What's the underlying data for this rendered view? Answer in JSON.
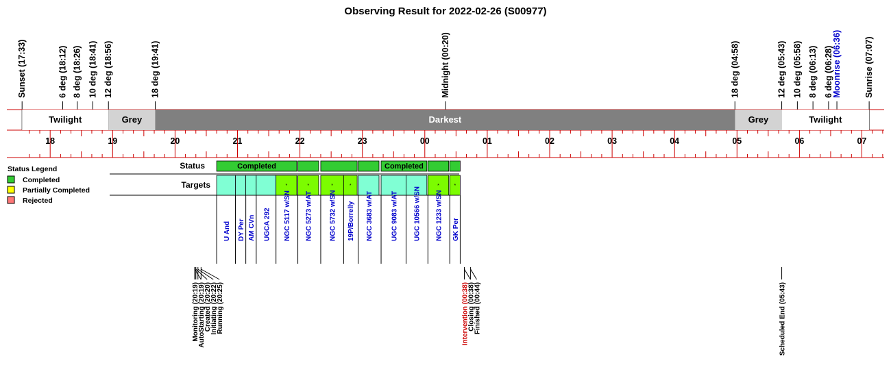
{
  "title": "Observing Result for 2022-02-26 (S00977)",
  "events_top": [
    {
      "label": "Sunset (17:33)",
      "time": "17:33",
      "color": "#000000"
    },
    {
      "label": "6 deg (18:12)",
      "time": "18:12",
      "color": "#000000"
    },
    {
      "label": "8 deg (18:26)",
      "time": "18:26",
      "color": "#000000"
    },
    {
      "label": "10 deg (18:41)",
      "time": "18:41",
      "color": "#000000"
    },
    {
      "label": "12 deg (18:56)",
      "time": "18:56",
      "color": "#000000"
    },
    {
      "label": "18 deg (19:41)",
      "time": "19:41",
      "color": "#000000"
    },
    {
      "label": "Midnight (00:20)",
      "time": "00:20",
      "color": "#000000"
    },
    {
      "label": "18 deg (04:58)",
      "time": "04:58",
      "color": "#000000"
    },
    {
      "label": "12 deg (05:43)",
      "time": "05:43",
      "color": "#000000"
    },
    {
      "label": "10 deg (05:58)",
      "time": "05:58",
      "color": "#000000"
    },
    {
      "label": "8 deg (06:13)",
      "time": "06:13",
      "color": "#000000"
    },
    {
      "label": "6 deg (06:28)",
      "time": "06:28",
      "color": "#000000"
    },
    {
      "label": "Moonrise (06:36)",
      "time": "06:36",
      "color": "#0000cc"
    },
    {
      "label": "Sunrise (07:07)",
      "time": "07:07",
      "color": "#000000"
    }
  ],
  "bands": [
    {
      "label": "Twilight",
      "start": "17:33",
      "end": "18:56",
      "fill": "#ffffff",
      "text_color": "#000000"
    },
    {
      "label": "Grey",
      "start": "18:56",
      "end": "19:41",
      "fill": "#d3d3d3",
      "text_color": "#000000"
    },
    {
      "label": "Darkest",
      "start": "19:41",
      "end": "04:58",
      "fill": "#808080",
      "text_color": "#ffffff"
    },
    {
      "label": "Grey",
      "start": "04:58",
      "end": "05:43",
      "fill": "#d3d3d3",
      "text_color": "#000000"
    },
    {
      "label": "Twilight",
      "start": "05:43",
      "end": "07:07",
      "fill": "#ffffff",
      "text_color": "#000000"
    }
  ],
  "hour_labels": [
    "18",
    "19",
    "20",
    "21",
    "22",
    "23",
    "00",
    "01",
    "02",
    "03",
    "04",
    "05",
    "06",
    "07"
  ],
  "legend": {
    "title": "Status Legend",
    "items": [
      {
        "label": "Completed",
        "color": "#33cc33"
      },
      {
        "label": "Partially Completed",
        "color": "#ffff00"
      },
      {
        "label": "Rejected",
        "color": "#ff7777"
      }
    ]
  },
  "row_labels": {
    "status": "Status",
    "targets": "Targets"
  },
  "status_blocks": [
    {
      "start": "20:40",
      "end": "21:57",
      "label": "Completed",
      "color": "#33cc33"
    },
    {
      "start": "21:58",
      "end": "22:18",
      "label": "",
      "color": "#33cc33"
    },
    {
      "start": "22:20",
      "end": "22:55",
      "label": "",
      "color": "#33cc33"
    },
    {
      "start": "22:56",
      "end": "23:16",
      "label": "",
      "color": "#33cc33"
    },
    {
      "start": "23:18",
      "end": "00:02",
      "label": "Completed",
      "color": "#33cc33"
    },
    {
      "start": "00:03",
      "end": "00:23",
      "label": "",
      "color": "#33cc33"
    },
    {
      "start": "00:24",
      "end": "00:34",
      "label": "",
      "color": "#33cc33"
    }
  ],
  "targets": [
    {
      "name": "U And",
      "start": "20:40",
      "end": "20:58",
      "fill": "#80ffd4",
      "mark": ""
    },
    {
      "name": "DY Per",
      "start": "20:58",
      "end": "21:08",
      "fill": "#80ffd4",
      "mark": ""
    },
    {
      "name": "AM CVn",
      "start": "21:08",
      "end": "21:18",
      "fill": "#80ffd4",
      "mark": ""
    },
    {
      "name": "UGCA 292",
      "start": "21:18",
      "end": "21:37",
      "fill": "#80ffd4",
      "mark": ""
    },
    {
      "name": "NGC 5117 w/SN",
      "start": "21:37",
      "end": "21:57",
      "fill": "#7cfc00",
      "mark": "*"
    },
    {
      "name": "NGC 5273 w/AT",
      "start": "21:58",
      "end": "22:18",
      "fill": "#7cfc00",
      "mark": "*"
    },
    {
      "name": "NGC 5732 w/SN",
      "start": "22:20",
      "end": "22:42",
      "fill": "#7cfc00",
      "mark": "*"
    },
    {
      "name": "19P/Borrelly",
      "start": "22:42",
      "end": "22:55",
      "fill": "#7cfc00",
      "mark": "*"
    },
    {
      "name": "NGC 3683 w/AT",
      "start": "22:56",
      "end": "23:16",
      "fill": "#80ffd4",
      "mark": ""
    },
    {
      "name": "UGC 9083 w/AT",
      "start": "23:18",
      "end": "23:42",
      "fill": "#80ffd4",
      "mark": ""
    },
    {
      "name": "UGC 10566 w/SN",
      "start": "23:42",
      "end": "00:02",
      "fill": "#80ffd4",
      "mark": ""
    },
    {
      "name": "NGC 1233 w/SN",
      "start": "00:03",
      "end": "00:23",
      "fill": "#7cfc00",
      "mark": "*"
    },
    {
      "name": "GK Per",
      "start": "00:24",
      "end": "00:34",
      "fill": "#7cfc00",
      "mark": "*"
    }
  ],
  "events_bottom": [
    {
      "label": "Monitoring (20:19)",
      "time": "20:19",
      "color": "#000000"
    },
    {
      "label": "AutoStarting (20:19)",
      "time": "20:19",
      "color": "#000000"
    },
    {
      "label": "Created (20:20)",
      "time": "20:20",
      "color": "#000000"
    },
    {
      "label": "Initiating (20:22)",
      "time": "20:22",
      "color": "#000000"
    },
    {
      "label": "Running (20:25)",
      "time": "20:25",
      "color": "#000000"
    },
    {
      "label": "Intervention (00:38)",
      "time": "00:38",
      "color": "#cc0000"
    },
    {
      "label": "Closing (00:38)",
      "time": "00:38",
      "color": "#000000"
    },
    {
      "label": "Finished (00:44)",
      "time": "00:44",
      "color": "#000000"
    },
    {
      "label": "Scheduled End (05:43)",
      "time": "05:43",
      "color": "#000000"
    }
  ]
}
